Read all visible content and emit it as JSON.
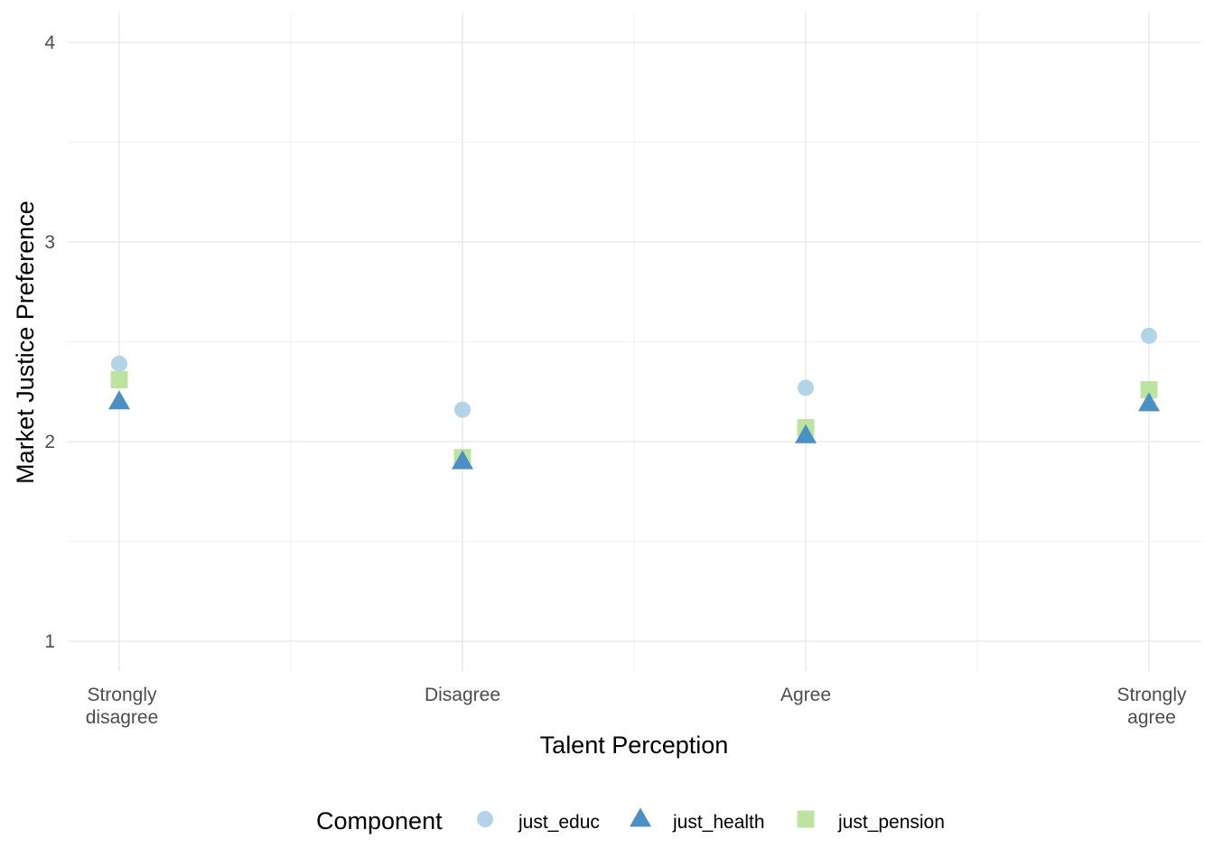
{
  "chart_data": {
    "type": "scatter",
    "title": "",
    "xlabel": "Talent Perception",
    "ylabel": "Market Justice Preference",
    "categories": [
      [
        "Strongly",
        "disagree"
      ],
      [
        "Disagree"
      ],
      [
        "Agree"
      ],
      [
        "Strongly",
        "agree"
      ]
    ],
    "yticks": [
      "1",
      "2",
      "3",
      "4"
    ],
    "ylim": [
      0.85,
      4.15
    ],
    "grid": true,
    "legend": {
      "title": "Component",
      "position": "bottom"
    },
    "series": [
      {
        "name": "just_educ",
        "shape": "circle",
        "color": "#B3D3E8",
        "values": [
          2.39,
          2.16,
          2.27,
          2.53
        ]
      },
      {
        "name": "just_health",
        "shape": "triangle",
        "color": "#4A90C4",
        "values": [
          2.2,
          1.9,
          2.03,
          2.19
        ]
      },
      {
        "name": "just_pension",
        "shape": "square",
        "color": "#BDE3A1",
        "values": [
          2.31,
          1.92,
          2.07,
          2.26
        ]
      }
    ]
  }
}
